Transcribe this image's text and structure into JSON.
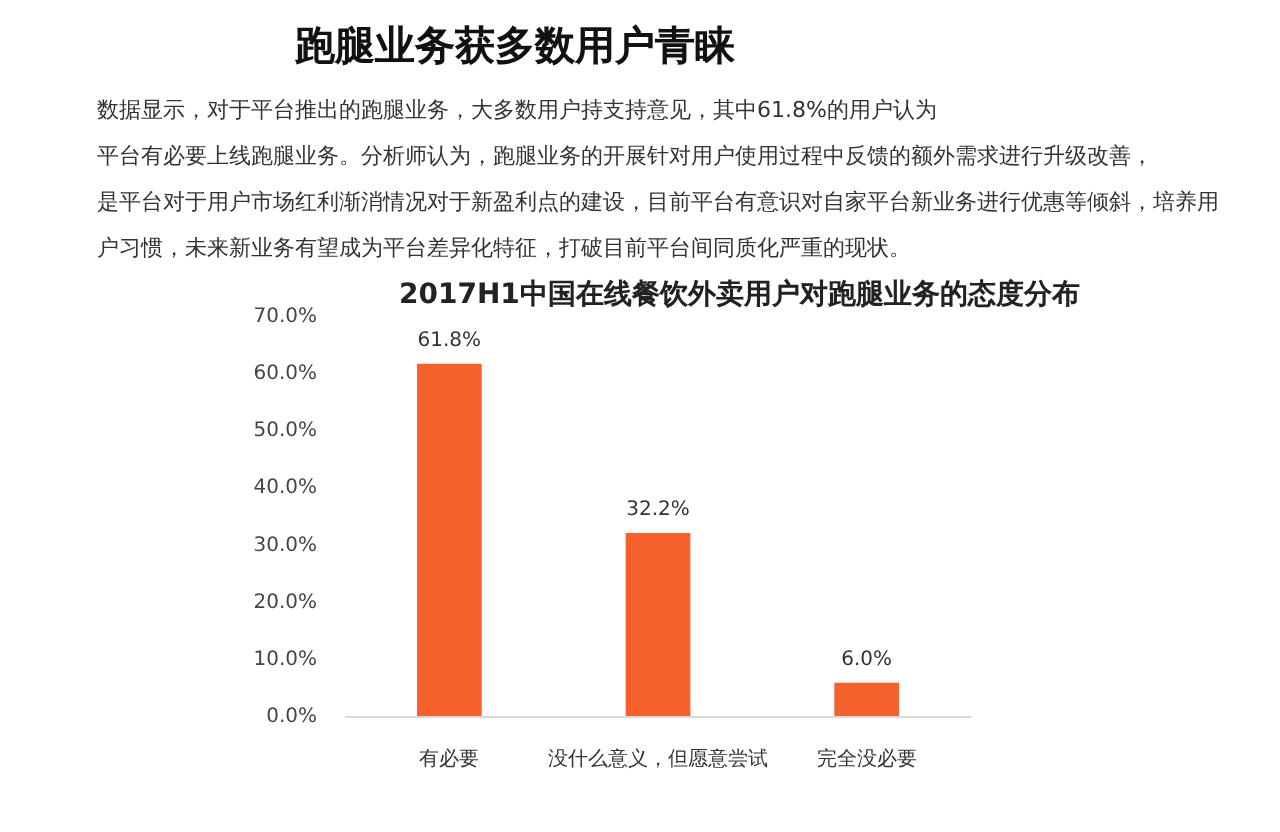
{
  "chart_data": {
    "type": "bar",
    "title": "跑腿业务获多数用户青睐",
    "annotations": [
      "数据显示，对于平台推出的跑腿业务，大多数用户持支持意见，其中61.8%的用户认为",
      "平台有必要上线跑腿业务。分析师认为，跑腿业务的开展针对用户使用过程中反馈的额外需求进行升级改善，",
      "是平台对于用户市场红利渐消情况对于新盈利点的建设，目前平台有意识对自家平台新业务进行优惠等倾斜，培养用",
      "户习惯，未来新业务有望成为平台差异化特征，打破目前平台间同质化严重的现状。"
    ],
    "subtitle": "2017H1中国在线餐饮外卖用户对跑腿业务的态度分布",
    "categories": [
      "有必要",
      "没什么意义，但愿意尝试",
      "完全没必要"
    ],
    "values": [
      61.8,
      32.2,
      6.0
    ],
    "value_labels": [
      "61.8%",
      "32.2%",
      "6.0%"
    ],
    "color": "#f5612d",
    "ylim": [
      0,
      70
    ],
    "yticks": [
      {
        "value": 0,
        "label": "0.0%"
      },
      {
        "value": 10,
        "label": "10.0%"
      },
      {
        "value": 20,
        "label": "20.0%"
      },
      {
        "value": 30,
        "label": "30.0%"
      },
      {
        "value": 40,
        "label": "40.0%"
      },
      {
        "value": 50,
        "label": "50.0%"
      },
      {
        "value": 60,
        "label": "60.0%"
      },
      {
        "value": 70,
        "label": "70.0%"
      }
    ]
  }
}
